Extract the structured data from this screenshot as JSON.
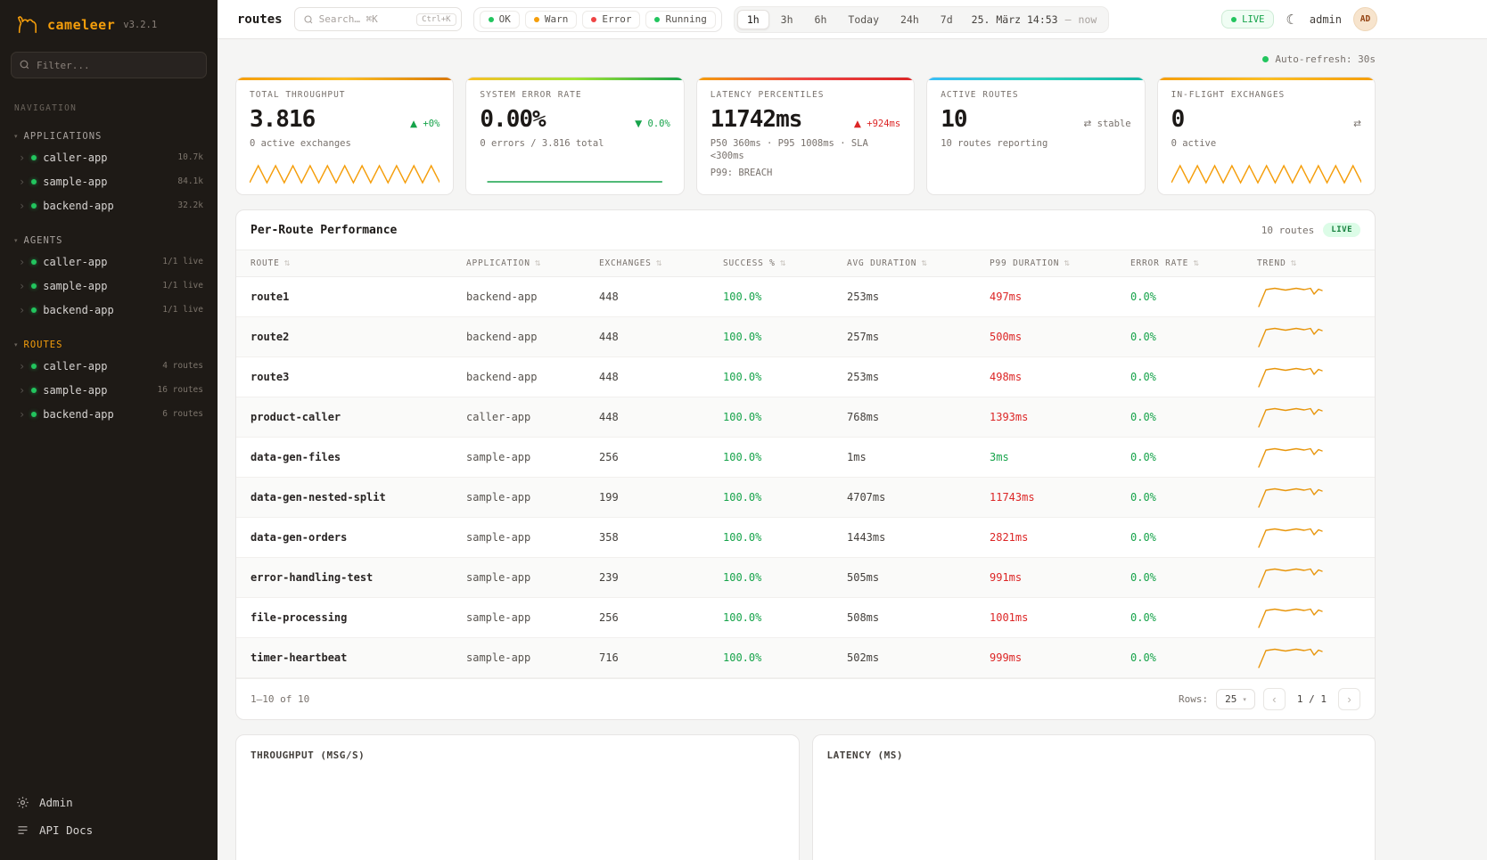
{
  "colors": {
    "accent": "#f59e0b",
    "green": "#16a34a",
    "red": "#dc2626",
    "trend": "#e8960c"
  },
  "glyphs": {
    "section_caret": "▾",
    "item_chevron": "›",
    "sort": "⇅",
    "select_caret": "▾",
    "moon": "☾"
  },
  "sidebar": {
    "logo": {
      "name": "cameleer",
      "version": "v3.2.1"
    },
    "filter_placeholder": "Filter...",
    "nav_label": "NAVIGATION",
    "sections": [
      {
        "label": "APPLICATIONS",
        "accent": false,
        "items": [
          {
            "label": "caller-app",
            "badge": "10.7k"
          },
          {
            "label": "sample-app",
            "badge": "84.1k"
          },
          {
            "label": "backend-app",
            "badge": "32.2k"
          }
        ]
      },
      {
        "label": "AGENTS",
        "accent": false,
        "items": [
          {
            "label": "caller-app",
            "badge": "1/1 live"
          },
          {
            "label": "sample-app",
            "badge": "1/1 live"
          },
          {
            "label": "backend-app",
            "badge": "1/1 live"
          }
        ]
      },
      {
        "label": "ROUTES",
        "accent": true,
        "items": [
          {
            "label": "caller-app",
            "badge": "4 routes"
          },
          {
            "label": "sample-app",
            "badge": "16 routes"
          },
          {
            "label": "backend-app",
            "badge": "6 routes"
          }
        ]
      }
    ],
    "footer": [
      {
        "label": "Admin"
      },
      {
        "label": "API Docs"
      }
    ]
  },
  "topbar": {
    "title": "routes",
    "search": {
      "placeholder": "Search… ⌘K",
      "shortcut": "Ctrl+K"
    },
    "filters": [
      {
        "label": "OK",
        "color": "#22c55e"
      },
      {
        "label": "Warn",
        "color": "#f59e0b"
      },
      {
        "label": "Error",
        "color": "#ef4444"
      },
      {
        "label": "Running",
        "color": "#22c55e"
      }
    ],
    "ranges": [
      "1h",
      "3h",
      "6h",
      "Today",
      "24h",
      "7d"
    ],
    "active_range": "1h",
    "date": {
      "start": "25. März 14:53",
      "sep": "—",
      "end": "now"
    },
    "live_label": "LIVE",
    "user": "admin",
    "avatar": "AD"
  },
  "main": {
    "auto_refresh": "Auto-refresh: 30s",
    "kpis": [
      {
        "title": "TOTAL THROUGHPUT",
        "value": "3.816",
        "delta_icon": "▲",
        "delta": "+0%",
        "delta_color": "#16a34a",
        "sub": "0 active exchanges",
        "sub2": "",
        "spark": "zigzag",
        "spark_color": "#f59e0b",
        "gradient": [
          "#f59e0b",
          "#fbbf24",
          "#d97706"
        ]
      },
      {
        "title": "SYSTEM ERROR RATE",
        "value": "0.00%",
        "delta_icon": "▼",
        "delta": "0.0%",
        "delta_color": "#16a34a",
        "sub": "0 errors / 3.816 total",
        "sub2": "",
        "spark": "flat",
        "spark_color": "#16a34a",
        "gradient": [
          "#fbbf24",
          "#a3e635",
          "#16a34a"
        ]
      },
      {
        "title": "LATENCY PERCENTILES",
        "value": "11742ms",
        "delta_icon": "▲",
        "delta": "+924ms",
        "delta_color": "#dc2626",
        "sub": "P50 360ms · P95 1008ms · SLA <300ms",
        "sub2": "P99: BREACH",
        "spark": "",
        "spark_color": "",
        "gradient": [
          "#f59e0b",
          "#ef4444",
          "#dc2626"
        ]
      },
      {
        "title": "ACTIVE ROUTES",
        "value": "10",
        "delta_icon": "⇄",
        "delta": "stable",
        "delta_color": "#78716c",
        "sub": "10 routes reporting",
        "sub2": "",
        "spark": "",
        "spark_color": "",
        "gradient": [
          "#38bdf8",
          "#2dd4bf",
          "#14b8a6"
        ]
      },
      {
        "title": "IN-FLIGHT EXCHANGES",
        "value": "0",
        "delta_icon": "⇄",
        "delta": "",
        "delta_color": "#78716c",
        "sub": "0 active",
        "sub2": "",
        "spark": "zigzag",
        "spark_color": "#f59e0b",
        "gradient": [
          "#f59e0b",
          "#fbbf24",
          "#f59e0b"
        ]
      }
    ],
    "table": {
      "title": "Per-Route Performance",
      "routes_count": "10 routes",
      "live_label": "LIVE",
      "columns": [
        "ROUTE",
        "APPLICATION",
        "EXCHANGES",
        "SUCCESS %",
        "AVG DURATION",
        "P99 DURATION",
        "ERROR RATE",
        "TREND"
      ],
      "rows": [
        {
          "route": "route1",
          "application": "backend-app",
          "exchanges": "448",
          "success": "100.0%",
          "avg_duration": "253ms",
          "p99_duration": "497ms",
          "p99_ok": false,
          "error_rate": "0.0%"
        },
        {
          "route": "route2",
          "application": "backend-app",
          "exchanges": "448",
          "success": "100.0%",
          "avg_duration": "257ms",
          "p99_duration": "500ms",
          "p99_ok": false,
          "error_rate": "0.0%"
        },
        {
          "route": "route3",
          "application": "backend-app",
          "exchanges": "448",
          "success": "100.0%",
          "avg_duration": "253ms",
          "p99_duration": "498ms",
          "p99_ok": false,
          "error_rate": "0.0%"
        },
        {
          "route": "product-caller",
          "application": "caller-app",
          "exchanges": "448",
          "success": "100.0%",
          "avg_duration": "768ms",
          "p99_duration": "1393ms",
          "p99_ok": false,
          "error_rate": "0.0%"
        },
        {
          "route": "data-gen-files",
          "application": "sample-app",
          "exchanges": "256",
          "success": "100.0%",
          "avg_duration": "1ms",
          "p99_duration": "3ms",
          "p99_ok": true,
          "error_rate": "0.0%"
        },
        {
          "route": "data-gen-nested-split",
          "application": "sample-app",
          "exchanges": "199",
          "success": "100.0%",
          "avg_duration": "4707ms",
          "p99_duration": "11743ms",
          "p99_ok": false,
          "error_rate": "0.0%"
        },
        {
          "route": "data-gen-orders",
          "application": "sample-app",
          "exchanges": "358",
          "success": "100.0%",
          "avg_duration": "1443ms",
          "p99_duration": "2821ms",
          "p99_ok": false,
          "error_rate": "0.0%"
        },
        {
          "route": "error-handling-test",
          "application": "sample-app",
          "exchanges": "239",
          "success": "100.0%",
          "avg_duration": "505ms",
          "p99_duration": "991ms",
          "p99_ok": false,
          "error_rate": "0.0%"
        },
        {
          "route": "file-processing",
          "application": "sample-app",
          "exchanges": "256",
          "success": "100.0%",
          "avg_duration": "508ms",
          "p99_duration": "1001ms",
          "p99_ok": false,
          "error_rate": "0.0%"
        },
        {
          "route": "timer-heartbeat",
          "application": "sample-app",
          "exchanges": "716",
          "success": "100.0%",
          "avg_duration": "502ms",
          "p99_duration": "999ms",
          "p99_ok": false,
          "error_rate": "0.0%"
        }
      ],
      "footer": {
        "range": "1–10 of 10",
        "rows_label": "Rows:",
        "rows_value": "25",
        "prev": "‹",
        "page": "1 / 1",
        "next": "›"
      }
    },
    "charts": [
      {
        "title": "THROUGHPUT (MSG/S)"
      },
      {
        "title": "LATENCY (MS)"
      }
    ]
  }
}
